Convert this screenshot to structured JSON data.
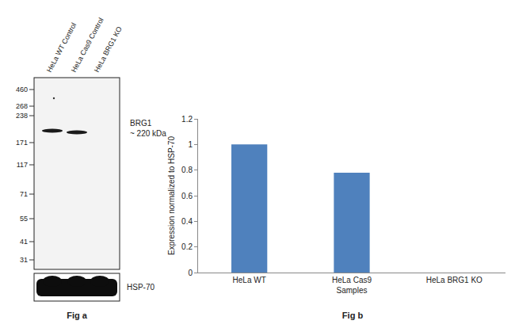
{
  "figure_a": {
    "title": "Fig a",
    "lanes": [
      "HeLa WT Control",
      "HeLa Cas9 Control",
      "HeLa BRG1 KO"
    ],
    "markers": [
      460,
      268,
      238,
      171,
      117,
      71,
      55,
      41,
      31
    ],
    "band": {
      "label": "BRG1",
      "size_label": "~ 220 kDa",
      "present": [
        true,
        true,
        false
      ]
    },
    "loading_control": "HSP-70"
  },
  "chart_data": {
    "type": "bar",
    "title": "Fig b",
    "categories": [
      "HeLa WT",
      "HeLa Cas9",
      "HeLa BRG1 KO"
    ],
    "values": [
      1,
      0.78,
      0
    ],
    "color": "#4f81bd",
    "x_label": "Samples",
    "y_label": "Expression normalized to HSP-70",
    "ylim": [
      0,
      1.2
    ],
    "yticks": [
      0,
      0.2,
      0.4,
      0.6,
      0.8,
      1,
      1.2
    ],
    "grid": false
  }
}
